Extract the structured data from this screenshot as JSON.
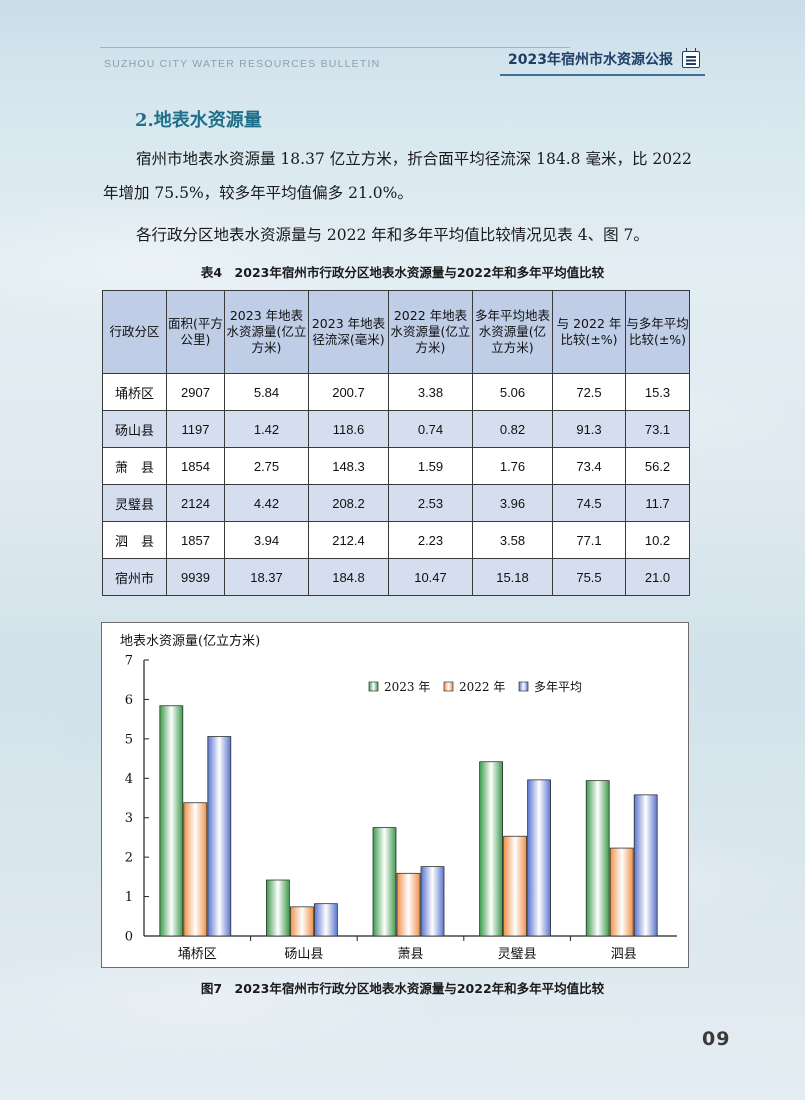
{
  "header": {
    "english_title": "SUZHOU CITY WATER RESOURCES BULLETIN",
    "title": "2023年宿州市水资源公报"
  },
  "section": {
    "title": "2.地表水资源量",
    "paragraph1": "宿州市地表水资源量 18.37 亿立方米，折合面平均径流深 184.8 毫米，比 2022 年增加 75.5%，较多年平均值偏多 21.0%。",
    "paragraph2": "各行政分区地表水资源量与 2022 年和多年平均值比较情况见表 4、图 7。"
  },
  "table": {
    "caption": "表4　2023年宿州市行政分区地表水资源量与2022年和多年平均值比较",
    "headers": [
      "行政分区",
      "面积(平方公里)",
      "2023 年地表水资源量(亿立方米)",
      "2023 年地表径流深(毫米)",
      "2022 年地表水资源量(亿立方米)",
      "多年平均地表水资源量(亿立方米)",
      "与 2022 年比较(±%)",
      "与多年平均比较(±%)"
    ],
    "rows": [
      [
        "埇桥区",
        "2907",
        "5.84",
        "200.7",
        "3.38",
        "5.06",
        "72.5",
        "15.3"
      ],
      [
        "砀山县",
        "1197",
        "1.42",
        "118.6",
        "0.74",
        "0.82",
        "91.3",
        "73.1"
      ],
      [
        "萧　县",
        "1854",
        "2.75",
        "148.3",
        "1.59",
        "1.76",
        "73.4",
        "56.2"
      ],
      [
        "灵璧县",
        "2124",
        "4.42",
        "208.2",
        "2.53",
        "3.96",
        "74.5",
        "11.7"
      ],
      [
        "泗　县",
        "1857",
        "3.94",
        "212.4",
        "2.23",
        "3.58",
        "77.1",
        "10.2"
      ],
      [
        "宿州市",
        "9939",
        "18.37",
        "184.8",
        "10.47",
        "15.18",
        "75.5",
        "21.0"
      ]
    ]
  },
  "chart_data": {
    "type": "bar",
    "title": "",
    "ylabel": "地表水资源量(亿立方米)",
    "xlabel": "",
    "categories": [
      "埇桥区",
      "砀山县",
      "萧县",
      "灵璧县",
      "泗县"
    ],
    "series": [
      {
        "name": "2023 年",
        "values": [
          5.84,
          1.42,
          2.75,
          4.42,
          3.94
        ],
        "color": "#3d9a4c"
      },
      {
        "name": "2022 年",
        "values": [
          3.38,
          0.74,
          1.59,
          2.53,
          2.23
        ],
        "color": "#f0924a"
      },
      {
        "name": "多年平均",
        "values": [
          5.06,
          0.82,
          1.76,
          3.96,
          3.58
        ],
        "color": "#5b74cf"
      }
    ],
    "ylim": [
      0,
      7
    ],
    "yticks": [
      0,
      1,
      2,
      3,
      4,
      5,
      6,
      7
    ],
    "grid": false,
    "legend_position": "top-right"
  },
  "figure": {
    "caption": "图7　2023年宿州市行政分区地表水资源量与2022年和多年平均值比较"
  },
  "page_number": "09"
}
